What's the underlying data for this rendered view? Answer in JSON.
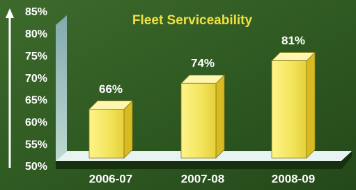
{
  "chart_data": {
    "type": "bar",
    "title": "Fleet Serviceability",
    "categories": [
      "2006-07",
      "2007-08",
      "2008-09"
    ],
    "values": [
      66,
      74,
      81
    ],
    "value_labels": [
      "66%",
      "74%",
      "81%"
    ],
    "color": "#f2e45a",
    "ylim": [
      50,
      85
    ],
    "yticks": [
      {
        "value": 50,
        "label": "50%"
      },
      {
        "value": 55,
        "label": "55%"
      },
      {
        "value": 60,
        "label": "60%"
      },
      {
        "value": 65,
        "label": "65%"
      },
      {
        "value": 70,
        "label": "70%"
      },
      {
        "value": 75,
        "label": "75%"
      },
      {
        "value": 80,
        "label": "80%"
      },
      {
        "value": 85,
        "label": "85%"
      }
    ]
  }
}
